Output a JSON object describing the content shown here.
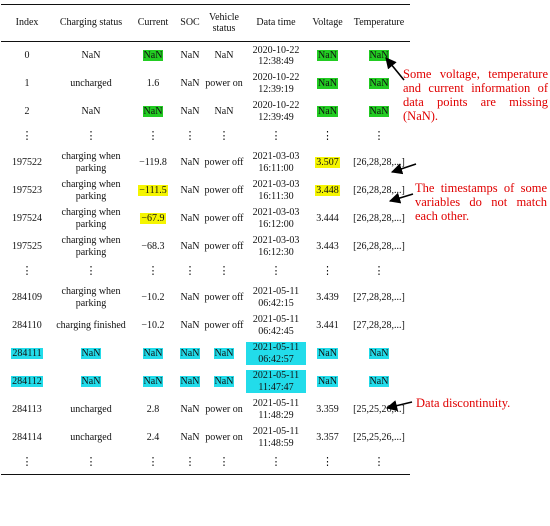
{
  "table": {
    "headers": [
      "Index",
      "Charging status",
      "Current",
      "SOC",
      "Vehicle status",
      "Data time",
      "Voltage",
      "Temperature"
    ],
    "rows": [
      {
        "type": "data",
        "cells": [
          "0",
          "NaN",
          "NaN",
          "NaN",
          "NaN",
          "2020-10-22 12:38:49",
          "NaN",
          "NaN"
        ],
        "hl": [
          "",
          "",
          "green",
          "",
          "",
          "",
          "green",
          "green"
        ]
      },
      {
        "type": "data",
        "cells": [
          "1",
          "uncharged",
          "1.6",
          "NaN",
          "power on",
          "2020-10-22 12:39:19",
          "NaN",
          "NaN"
        ],
        "hl": [
          "",
          "",
          "",
          "",
          "",
          "",
          "green",
          "green"
        ]
      },
      {
        "type": "data",
        "cells": [
          "2",
          "NaN",
          "NaN",
          "NaN",
          "NaN",
          "2020-10-22 12:39:49",
          "NaN",
          "NaN"
        ],
        "hl": [
          "",
          "",
          "green",
          "",
          "",
          "",
          "green",
          "green"
        ]
      },
      {
        "type": "ellipsis",
        "cells": [
          "⋮",
          "⋮",
          "⋮",
          "⋮",
          "⋮",
          "⋮",
          "⋮",
          "⋮"
        ]
      },
      {
        "type": "data",
        "cells": [
          "197522",
          "charging when parking",
          "−119.8",
          "NaN",
          "power off",
          "2021-03-03 16:11:00",
          "3.507",
          "[26,28,28,...]"
        ],
        "hl": [
          "",
          "",
          "",
          "",
          "",
          "",
          "yellow",
          ""
        ]
      },
      {
        "type": "data",
        "cells": [
          "197523",
          "charging when parking",
          "−111.5",
          "NaN",
          "power off",
          "2021-03-03 16:11:30",
          "3.448",
          "[26,28,28,...]"
        ],
        "hl": [
          "",
          "",
          "yellow",
          "",
          "",
          "",
          "yellow",
          ""
        ]
      },
      {
        "type": "data",
        "cells": [
          "197524",
          "charging when parking",
          "−67.9",
          "NaN",
          "power off",
          "2021-03-03 16:12:00",
          "3.444",
          "[26,28,28,...]"
        ],
        "hl": [
          "",
          "",
          "yellow",
          "",
          "",
          "",
          "",
          ""
        ]
      },
      {
        "type": "data",
        "cells": [
          "197525",
          "charging when parking",
          "−68.3",
          "NaN",
          "power off",
          "2021-03-03 16:12:30",
          "3.443",
          "[26,28,28,...]"
        ],
        "hl": [
          "",
          "",
          "",
          "",
          "",
          "",
          "",
          ""
        ]
      },
      {
        "type": "ellipsis",
        "cells": [
          "⋮",
          "⋮",
          "⋮",
          "⋮",
          "⋮",
          "⋮",
          "⋮",
          "⋮"
        ]
      },
      {
        "type": "data",
        "cells": [
          "284109",
          "charging when parking",
          "−10.2",
          "NaN",
          "power off",
          "2021-05-11 06:42:15",
          "3.439",
          "[27,28,28,...]"
        ],
        "hl": [
          "",
          "",
          "",
          "",
          "",
          "",
          "",
          ""
        ]
      },
      {
        "type": "data",
        "cells": [
          "284110",
          "charging finished",
          "−10.2",
          "NaN",
          "power off",
          "2021-05-11 06:42:45",
          "3.441",
          "[27,28,28,...]"
        ],
        "hl": [
          "",
          "",
          "",
          "",
          "",
          "",
          "",
          ""
        ]
      },
      {
        "type": "data",
        "cells": [
          "284111",
          "NaN",
          "NaN",
          "NaN",
          "NaN",
          "2021-05-11 06:42:57",
          "NaN",
          "NaN"
        ],
        "hl": [
          "cyan",
          "cyan",
          "cyan",
          "cyan",
          "cyan",
          "cyan",
          "cyan",
          "cyan"
        ]
      },
      {
        "type": "data",
        "cells": [
          "284112",
          "NaN",
          "NaN",
          "NaN",
          "NaN",
          "2021-05-11 11:47:47",
          "NaN",
          "NaN"
        ],
        "hl": [
          "cyan",
          "cyan",
          "cyan",
          "cyan",
          "cyan",
          "cyan",
          "cyan",
          "cyan"
        ]
      },
      {
        "type": "data",
        "cells": [
          "284113",
          "uncharged",
          "2.8",
          "NaN",
          "power on",
          "2021-05-11 11:48:29",
          "3.359",
          "[25,25,26,...]"
        ],
        "hl": [
          "",
          "",
          "",
          "",
          "",
          "",
          "",
          ""
        ]
      },
      {
        "type": "data",
        "cells": [
          "284114",
          "uncharged",
          "2.4",
          "NaN",
          "power on",
          "2021-05-11 11:48:59",
          "3.357",
          "[25,25,26,...]"
        ],
        "hl": [
          "",
          "",
          "",
          "",
          "",
          "",
          "",
          ""
        ]
      },
      {
        "type": "ellipsis",
        "cells": [
          "⋮",
          "⋮",
          "⋮",
          "⋮",
          "⋮",
          "⋮",
          "⋮",
          "⋮"
        ]
      }
    ]
  },
  "annotations": {
    "missing": "Some voltage, temperature and current information of data points are missing (NaN).",
    "timestamps": "The timestamps of some variables do not match each other.",
    "discontinuity": "Data discontinuity."
  },
  "colors": {
    "missing_highlight": "#22cc22",
    "mismatch_highlight": "#f5f500",
    "discontinuity_highlight": "#22dcea",
    "annotation_text": "#e00000",
    "arrow": "#000000"
  }
}
